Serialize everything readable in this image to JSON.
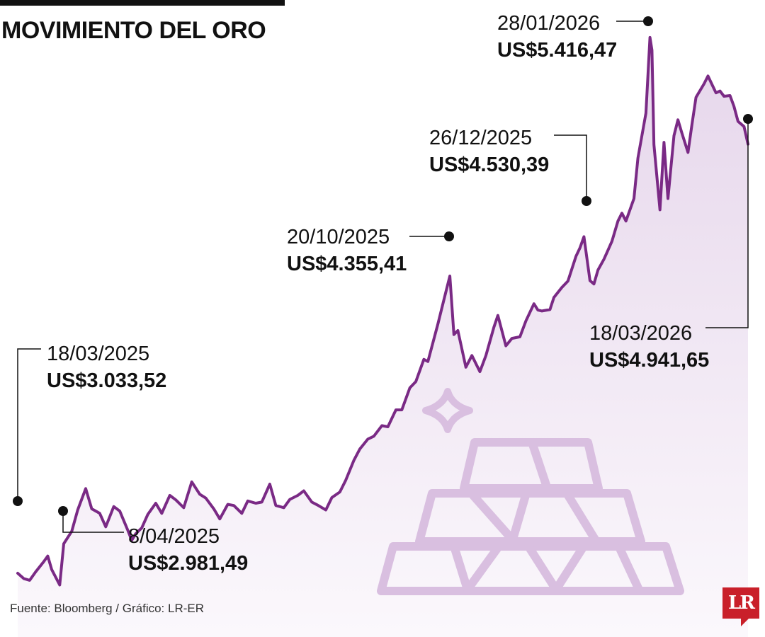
{
  "header": {
    "title": "MOVIMIENTO DEL ORO"
  },
  "footer": {
    "source": "Fuente: Bloomberg / Gráfico: LR-ER"
  },
  "brand": {
    "logo_text": "LR",
    "logo_color": "#c9202a"
  },
  "colors": {
    "line": "#7a2a85",
    "area_top": "#e6d6eb",
    "area_bottom": "#fbf8fc",
    "ingots": "#d9bfe0",
    "annotation": "#111111"
  },
  "decorations": {
    "illustration": "gold-bars-icon",
    "sparkle": "sparkle-icon"
  },
  "chart_data": {
    "type": "area",
    "title": "MOVIMIENTO DEL ORO",
    "xlabel": "",
    "ylabel": "",
    "unit": "US$",
    "x_range": [
      "2025-03-18",
      "2026-03-18"
    ],
    "ylim": [
      2750,
      5520
    ],
    "grid": false,
    "legend": "none",
    "series": [
      {
        "values": [
          [
            "2025-03-18",
            3033.52
          ],
          [
            "2025-03-21",
            3010
          ],
          [
            "2025-03-24",
            3002
          ],
          [
            "2025-03-27",
            3040
          ],
          [
            "2025-03-31",
            3085
          ],
          [
            "2025-04-02",
            3110
          ],
          [
            "2025-04-04",
            3050
          ],
          [
            "2025-04-08",
            2981.49
          ],
          [
            "2025-04-10",
            3165
          ],
          [
            "2025-04-14",
            3220
          ],
          [
            "2025-04-17",
            3315
          ],
          [
            "2025-04-21",
            3410
          ],
          [
            "2025-04-24",
            3320
          ],
          [
            "2025-04-28",
            3300
          ],
          [
            "2025-05-01",
            3240
          ],
          [
            "2025-05-05",
            3330
          ],
          [
            "2025-05-08",
            3310
          ],
          [
            "2025-05-12",
            3225
          ],
          [
            "2025-05-14",
            3180
          ],
          [
            "2025-05-16",
            3210
          ],
          [
            "2025-05-19",
            3235
          ],
          [
            "2025-05-22",
            3295
          ],
          [
            "2025-05-26",
            3345
          ],
          [
            "2025-05-29",
            3300
          ],
          [
            "2025-06-02",
            3380
          ],
          [
            "2025-06-05",
            3360
          ],
          [
            "2025-06-09",
            3325
          ],
          [
            "2025-06-13",
            3440
          ],
          [
            "2025-06-17",
            3385
          ],
          [
            "2025-06-20",
            3368
          ],
          [
            "2025-06-24",
            3320
          ],
          [
            "2025-06-27",
            3275
          ],
          [
            "2025-07-01",
            3340
          ],
          [
            "2025-07-04",
            3335
          ],
          [
            "2025-07-08",
            3300
          ],
          [
            "2025-07-11",
            3355
          ],
          [
            "2025-07-15",
            3345
          ],
          [
            "2025-07-18",
            3350
          ],
          [
            "2025-07-22",
            3430
          ],
          [
            "2025-07-25",
            3335
          ],
          [
            "2025-07-29",
            3325
          ],
          [
            "2025-08-01",
            3362
          ],
          [
            "2025-08-05",
            3380
          ],
          [
            "2025-08-08",
            3400
          ],
          [
            "2025-08-12",
            3350
          ],
          [
            "2025-08-15",
            3336
          ],
          [
            "2025-08-19",
            3315
          ],
          [
            "2025-08-22",
            3370
          ],
          [
            "2025-08-26",
            3395
          ],
          [
            "2025-08-29",
            3448
          ],
          [
            "2025-09-02",
            3535
          ],
          [
            "2025-09-05",
            3586
          ],
          [
            "2025-09-09",
            3630
          ],
          [
            "2025-09-12",
            3643
          ],
          [
            "2025-09-16",
            3690
          ],
          [
            "2025-09-19",
            3685
          ],
          [
            "2025-09-23",
            3760
          ],
          [
            "2025-09-26",
            3760
          ],
          [
            "2025-09-30",
            3858
          ],
          [
            "2025-10-03",
            3886
          ],
          [
            "2025-10-07",
            3985
          ],
          [
            "2025-10-09",
            3975
          ],
          [
            "2025-10-14",
            4142
          ],
          [
            "2025-10-17",
            4250
          ],
          [
            "2025-10-20",
            4355.41
          ],
          [
            "2025-10-22",
            4095
          ],
          [
            "2025-10-24",
            4113
          ],
          [
            "2025-10-28",
            3950
          ],
          [
            "2025-10-31",
            4002
          ],
          [
            "2025-11-04",
            3930
          ],
          [
            "2025-11-07",
            4002
          ],
          [
            "2025-11-11",
            4128
          ],
          [
            "2025-11-13",
            4180
          ],
          [
            "2025-11-17",
            4045
          ],
          [
            "2025-11-20",
            4078
          ],
          [
            "2025-11-24",
            4085
          ],
          [
            "2025-11-27",
            4156
          ],
          [
            "2025-12-01",
            4232
          ],
          [
            "2025-12-03",
            4204
          ],
          [
            "2025-12-05",
            4200
          ],
          [
            "2025-12-09",
            4206
          ],
          [
            "2025-12-11",
            4260
          ],
          [
            "2025-12-15",
            4305
          ],
          [
            "2025-12-18",
            4333
          ],
          [
            "2025-12-22",
            4443
          ],
          [
            "2025-12-24",
            4480
          ],
          [
            "2025-12-26",
            4530.39
          ],
          [
            "2025-12-29",
            4335
          ],
          [
            "2025-12-31",
            4320
          ],
          [
            "2026-01-02",
            4382
          ],
          [
            "2026-01-05",
            4430
          ],
          [
            "2026-01-07",
            4470
          ],
          [
            "2026-01-09",
            4510
          ],
          [
            "2026-01-12",
            4600
          ],
          [
            "2026-01-14",
            4635
          ],
          [
            "2026-01-16",
            4600
          ],
          [
            "2026-01-20",
            4700
          ],
          [
            "2026-01-22",
            4880
          ],
          [
            "2026-01-26",
            5080
          ],
          [
            "2026-01-28",
            5416.47
          ],
          [
            "2026-01-29",
            5360
          ],
          [
            "2026-01-30",
            4940
          ],
          [
            "2026-02-02",
            4650
          ],
          [
            "2026-02-04",
            4950
          ],
          [
            "2026-02-06",
            4700
          ],
          [
            "2026-02-09",
            4980
          ],
          [
            "2026-02-11",
            5050
          ],
          [
            "2026-02-13",
            4990
          ],
          [
            "2026-02-16",
            4905
          ],
          [
            "2026-02-18",
            5030
          ],
          [
            "2026-02-20",
            5150
          ],
          [
            "2026-02-24",
            5210
          ],
          [
            "2026-02-26",
            5245
          ],
          [
            "2026-03-02",
            5170
          ],
          [
            "2026-03-04",
            5178
          ],
          [
            "2026-03-06",
            5155
          ],
          [
            "2026-03-09",
            5158
          ],
          [
            "2026-03-11",
            5110
          ],
          [
            "2026-03-13",
            5043
          ],
          [
            "2026-03-16",
            5020
          ],
          [
            "2026-03-18",
            4941.65
          ]
        ]
      }
    ],
    "annotations": [
      {
        "date": "18/03/2025",
        "value": "US$3.033,52"
      },
      {
        "date": "8/04/2025",
        "value": "US$2.981,49"
      },
      {
        "date": "20/10/2025",
        "value": "US$4.355,41"
      },
      {
        "date": "26/12/2025",
        "value": "US$4.530,39"
      },
      {
        "date": "28/01/2026",
        "value": "US$5.416,47"
      },
      {
        "date": "18/03/2026",
        "value": "US$4.941,65"
      }
    ]
  }
}
